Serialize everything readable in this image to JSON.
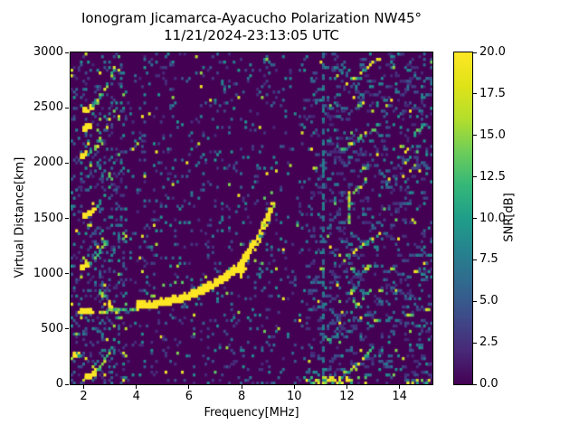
{
  "figure": {
    "title": "Ionogram Jicamarca-Ayacucho Polarization NW45°",
    "subtitle": "11/21/2024-23:13:05 UTC",
    "background_color": "#ffffff",
    "text_color": "#000000"
  },
  "axes": {
    "xlabel": "Frequency[MHz]",
    "ylabel": "Virtual Distance[km]",
    "x_ticks": [
      2,
      4,
      6,
      8,
      10,
      12,
      14
    ],
    "y_ticks": [
      0,
      500,
      1000,
      1500,
      2000,
      2500,
      3000
    ],
    "x_range": [
      1.5,
      15.25
    ],
    "y_range": [
      0,
      3000
    ]
  },
  "colorbar": {
    "label": "SNR[dB]",
    "min": 0,
    "max": 20,
    "ticks": [
      {
        "v": 0,
        "label": "0.0"
      },
      {
        "v": 2.5,
        "label": "2.5"
      },
      {
        "v": 5,
        "label": "5.0"
      },
      {
        "v": 7.5,
        "label": "7.5"
      },
      {
        "v": 10,
        "label": "10.0"
      },
      {
        "v": 12.5,
        "label": "12.5"
      },
      {
        "v": 15,
        "label": "15.0"
      },
      {
        "v": 17.5,
        "label": "17.5"
      },
      {
        "v": 20,
        "label": "20.0"
      }
    ],
    "colormap": "viridis",
    "gradient_stops": [
      "#440154",
      "#482878",
      "#3e4a89",
      "#31688e",
      "#26828e",
      "#1f9e89",
      "#35b779",
      "#6dcd59",
      "#b4de2c",
      "#dfe318",
      "#fde725"
    ]
  },
  "chart_data": {
    "type": "heatmap",
    "title": "Ionogram Jicamarca-Ayacucho Polarization NW45°",
    "subtitle": "11/21/2024-23:13:05 UTC",
    "xlabel": "Frequency[MHz]",
    "ylabel": "Virtual Distance[km]",
    "zlabel": "SNR[dB]",
    "f_range": [
      1.5,
      15.25
    ],
    "alt_range": [
      0,
      3000
    ],
    "snr_range": [
      0,
      20
    ],
    "colormap": "viridis",
    "background_db": 0,
    "grid": {
      "cols": 154,
      "rows": 122
    },
    "noise": {
      "regions": [
        {
          "f0": 1.5,
          "f1": 3.6,
          "p": 0.21
        },
        {
          "f0": 3.6,
          "f1": 9.35,
          "p": 0.09
        },
        {
          "f0": 9.35,
          "f1": 10.45,
          "p": 0.055
        },
        {
          "f0": 10.45,
          "f1": 12.35,
          "p": 0.16
        },
        {
          "f0": 12.35,
          "f1": 15.25,
          "p": 0.14
        }
      ]
    },
    "main_trace": {
      "lead_in": [
        [
          2.55,
          658
        ],
        [
          3.2,
          668
        ],
        [
          4.0,
          680
        ]
      ],
      "bright": [
        [
          4.0,
          688
        ],
        [
          4.5,
          700
        ],
        [
          5.0,
          722
        ],
        [
          5.5,
          748
        ],
        [
          6.0,
          782
        ],
        [
          6.5,
          833
        ],
        [
          7.0,
          895
        ],
        [
          7.5,
          968
        ],
        [
          7.9,
          1048
        ],
        [
          8.2,
          1150
        ],
        [
          8.45,
          1252
        ]
      ],
      "branch_o": [
        [
          8.45,
          1252
        ],
        [
          8.65,
          1352
        ],
        [
          8.85,
          1455
        ],
        [
          9.0,
          1540
        ],
        [
          9.15,
          1628
        ]
      ],
      "branch_x": [
        [
          8.5,
          1218
        ],
        [
          8.72,
          1330
        ],
        [
          8.92,
          1445
        ],
        [
          9.1,
          1555
        ],
        [
          9.27,
          1678
        ]
      ],
      "blob": [
        7.95,
        1052
      ]
    },
    "echo_arcs": [
      {
        "p0": [
          2.0,
          2470
        ],
        "p1": [
          3.3,
          2960
        ],
        "curve": 1.9,
        "bright": [
          1.9,
          2.35
        ]
      },
      {
        "p0": [
          1.9,
          2060
        ],
        "p1": [
          3.0,
          2400
        ],
        "curve": 1.9,
        "bright": [
          1.8,
          2.1
        ]
      },
      {
        "p0": [
          1.95,
          2290
        ],
        "p1": [
          2.25,
          2335
        ],
        "curve": 1.0,
        "bright": [
          1.9,
          2.3
        ]
      },
      {
        "p0": [
          1.95,
          1515
        ],
        "p1": [
          3.1,
          1875
        ],
        "curve": 1.9,
        "bright": [
          1.9,
          2.42
        ]
      },
      {
        "p0": [
          1.9,
          1055
        ],
        "p1": [
          2.95,
          1365
        ],
        "curve": 1.9,
        "bright": [
          1.8,
          2.15
        ]
      },
      {
        "p0": [
          2.05,
          55
        ],
        "p1": [
          3.15,
          400
        ],
        "curve": 1.9,
        "bright": [
          1.9,
          2.45
        ]
      },
      {
        "p0": [
          1.62,
          248
        ],
        "p1": [
          1.88,
          264
        ],
        "curve": 1.0,
        "bright": [
          1.5,
          1.8
        ]
      },
      {
        "p0": [
          1.85,
          648
        ],
        "p1": [
          2.32,
          658
        ],
        "curve": 1.0,
        "bright": [
          1.8,
          2.32
        ]
      },
      {
        "p0": [
          2.58,
          848
        ],
        "p1": [
          3.38,
          596
        ],
        "curve": 1.0,
        "bright": [
          2.92,
          3.22
        ]
      }
    ],
    "right_segments": [
      {
        "p0": [
          12.0,
          2720
        ],
        "p1": [
          13.2,
          2945
        ]
      },
      {
        "p0": [
          11.8,
          2120
        ],
        "p1": [
          12.85,
          2285
        ]
      },
      {
        "p0": [
          13.0,
          2300
        ],
        "p1": [
          13.4,
          2400
        ]
      },
      {
        "p0": [
          12.15,
          1715
        ],
        "p1": [
          12.9,
          1885
        ]
      },
      {
        "p0": [
          11.95,
          1150
        ],
        "p1": [
          13.3,
          1365
        ]
      },
      {
        "p0": [
          12.0,
          890
        ],
        "p1": [
          12.35,
          705
        ]
      },
      {
        "p0": [
          12.35,
          705
        ],
        "p1": [
          12.95,
          865
        ]
      },
      {
        "p0": [
          12.05,
          110
        ],
        "p1": [
          13.05,
          335
        ]
      },
      {
        "p0": [
          14.55,
          2260
        ],
        "p1": [
          14.95,
          2345
        ]
      }
    ],
    "vertical_features": [
      {
        "f": 12.08,
        "alt0": 1455,
        "alt1": 1730,
        "style": "solid"
      },
      {
        "f": 11.12,
        "alt0": 0,
        "alt1": 3000,
        "style": "dashed"
      }
    ],
    "bottom_bands": [
      {
        "f0": 10.35,
        "f1": 12.75,
        "alt_max": 50,
        "density": 0.4
      },
      {
        "f0": 14.35,
        "f1": 15.2,
        "alt_max": 40,
        "density": 0.22
      }
    ],
    "colors": {
      "background": "#440154",
      "peak": "#fde725",
      "mid_noise": "#21918c"
    }
  }
}
